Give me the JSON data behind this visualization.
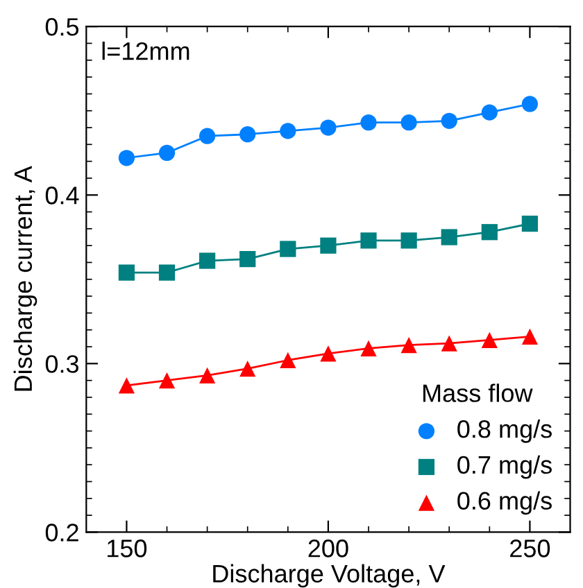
{
  "chart_data": {
    "type": "line",
    "xlabel": "Discharge Voltage, V",
    "ylabel": "Discharge current, A",
    "legend_title": "Mass flow",
    "annotations": [
      "l=12mm"
    ],
    "x": [
      150,
      160,
      170,
      180,
      190,
      200,
      210,
      220,
      230,
      240,
      250
    ],
    "series": [
      {
        "name": "0.8 mg/s",
        "color": "#0080ff",
        "marker": "circle",
        "values": [
          0.422,
          0.425,
          0.435,
          0.436,
          0.438,
          0.44,
          0.443,
          0.443,
          0.444,
          0.449,
          0.454
        ]
      },
      {
        "name": "0.7 mg/s",
        "color": "#008080",
        "marker": "square",
        "values": [
          0.354,
          0.354,
          0.361,
          0.362,
          0.368,
          0.37,
          0.373,
          0.373,
          0.375,
          0.378,
          0.383
        ]
      },
      {
        "name": "0.6 mg/s",
        "color": "#ff0000",
        "marker": "triangle",
        "values": [
          0.287,
          0.29,
          0.293,
          0.297,
          0.302,
          0.306,
          0.309,
          0.311,
          0.312,
          0.314,
          0.316
        ]
      }
    ],
    "xlim": [
      140,
      260
    ],
    "ylim": [
      0.2,
      0.5
    ],
    "xticks": [
      150,
      {
        "value": 160,
        "label": null
      },
      {
        "value": 170,
        "label": null
      },
      {
        "value": 180,
        "label": null
      },
      {
        "value": 190,
        "label": null
      },
      200,
      {
        "value": 210,
        "label": null
      },
      {
        "value": 220,
        "label": null
      },
      {
        "value": 230,
        "label": null
      },
      {
        "value": 240,
        "label": null
      },
      250
    ],
    "yticks": [
      0.2,
      {
        "value": 0.21,
        "label": null
      },
      {
        "value": 0.22,
        "label": null
      },
      {
        "value": 0.23,
        "label": null
      },
      {
        "value": 0.24,
        "label": null
      },
      {
        "value": 0.25,
        "label": null
      },
      {
        "value": 0.26,
        "label": null
      },
      {
        "value": 0.27,
        "label": null
      },
      {
        "value": 0.28,
        "label": null
      },
      {
        "value": 0.29,
        "label": null
      },
      0.3,
      {
        "value": 0.31,
        "label": null
      },
      {
        "value": 0.32,
        "label": null
      },
      {
        "value": 0.33,
        "label": null
      },
      {
        "value": 0.34,
        "label": null
      },
      {
        "value": 0.35,
        "label": null
      },
      {
        "value": 0.36,
        "label": null
      },
      {
        "value": 0.37,
        "label": null
      },
      {
        "value": 0.38,
        "label": null
      },
      {
        "value": 0.39,
        "label": null
      },
      0.4,
      {
        "value": 0.41,
        "label": null
      },
      {
        "value": 0.42,
        "label": null
      },
      {
        "value": 0.43,
        "label": null
      },
      {
        "value": 0.44,
        "label": null
      },
      {
        "value": 0.45,
        "label": null
      },
      {
        "value": 0.46,
        "label": null
      },
      {
        "value": 0.47,
        "label": null
      },
      {
        "value": 0.48,
        "label": null
      },
      {
        "value": 0.49,
        "label": null
      },
      0.5
    ],
    "grid": false,
    "legend": "bottom right",
    "line_style": "solid"
  }
}
